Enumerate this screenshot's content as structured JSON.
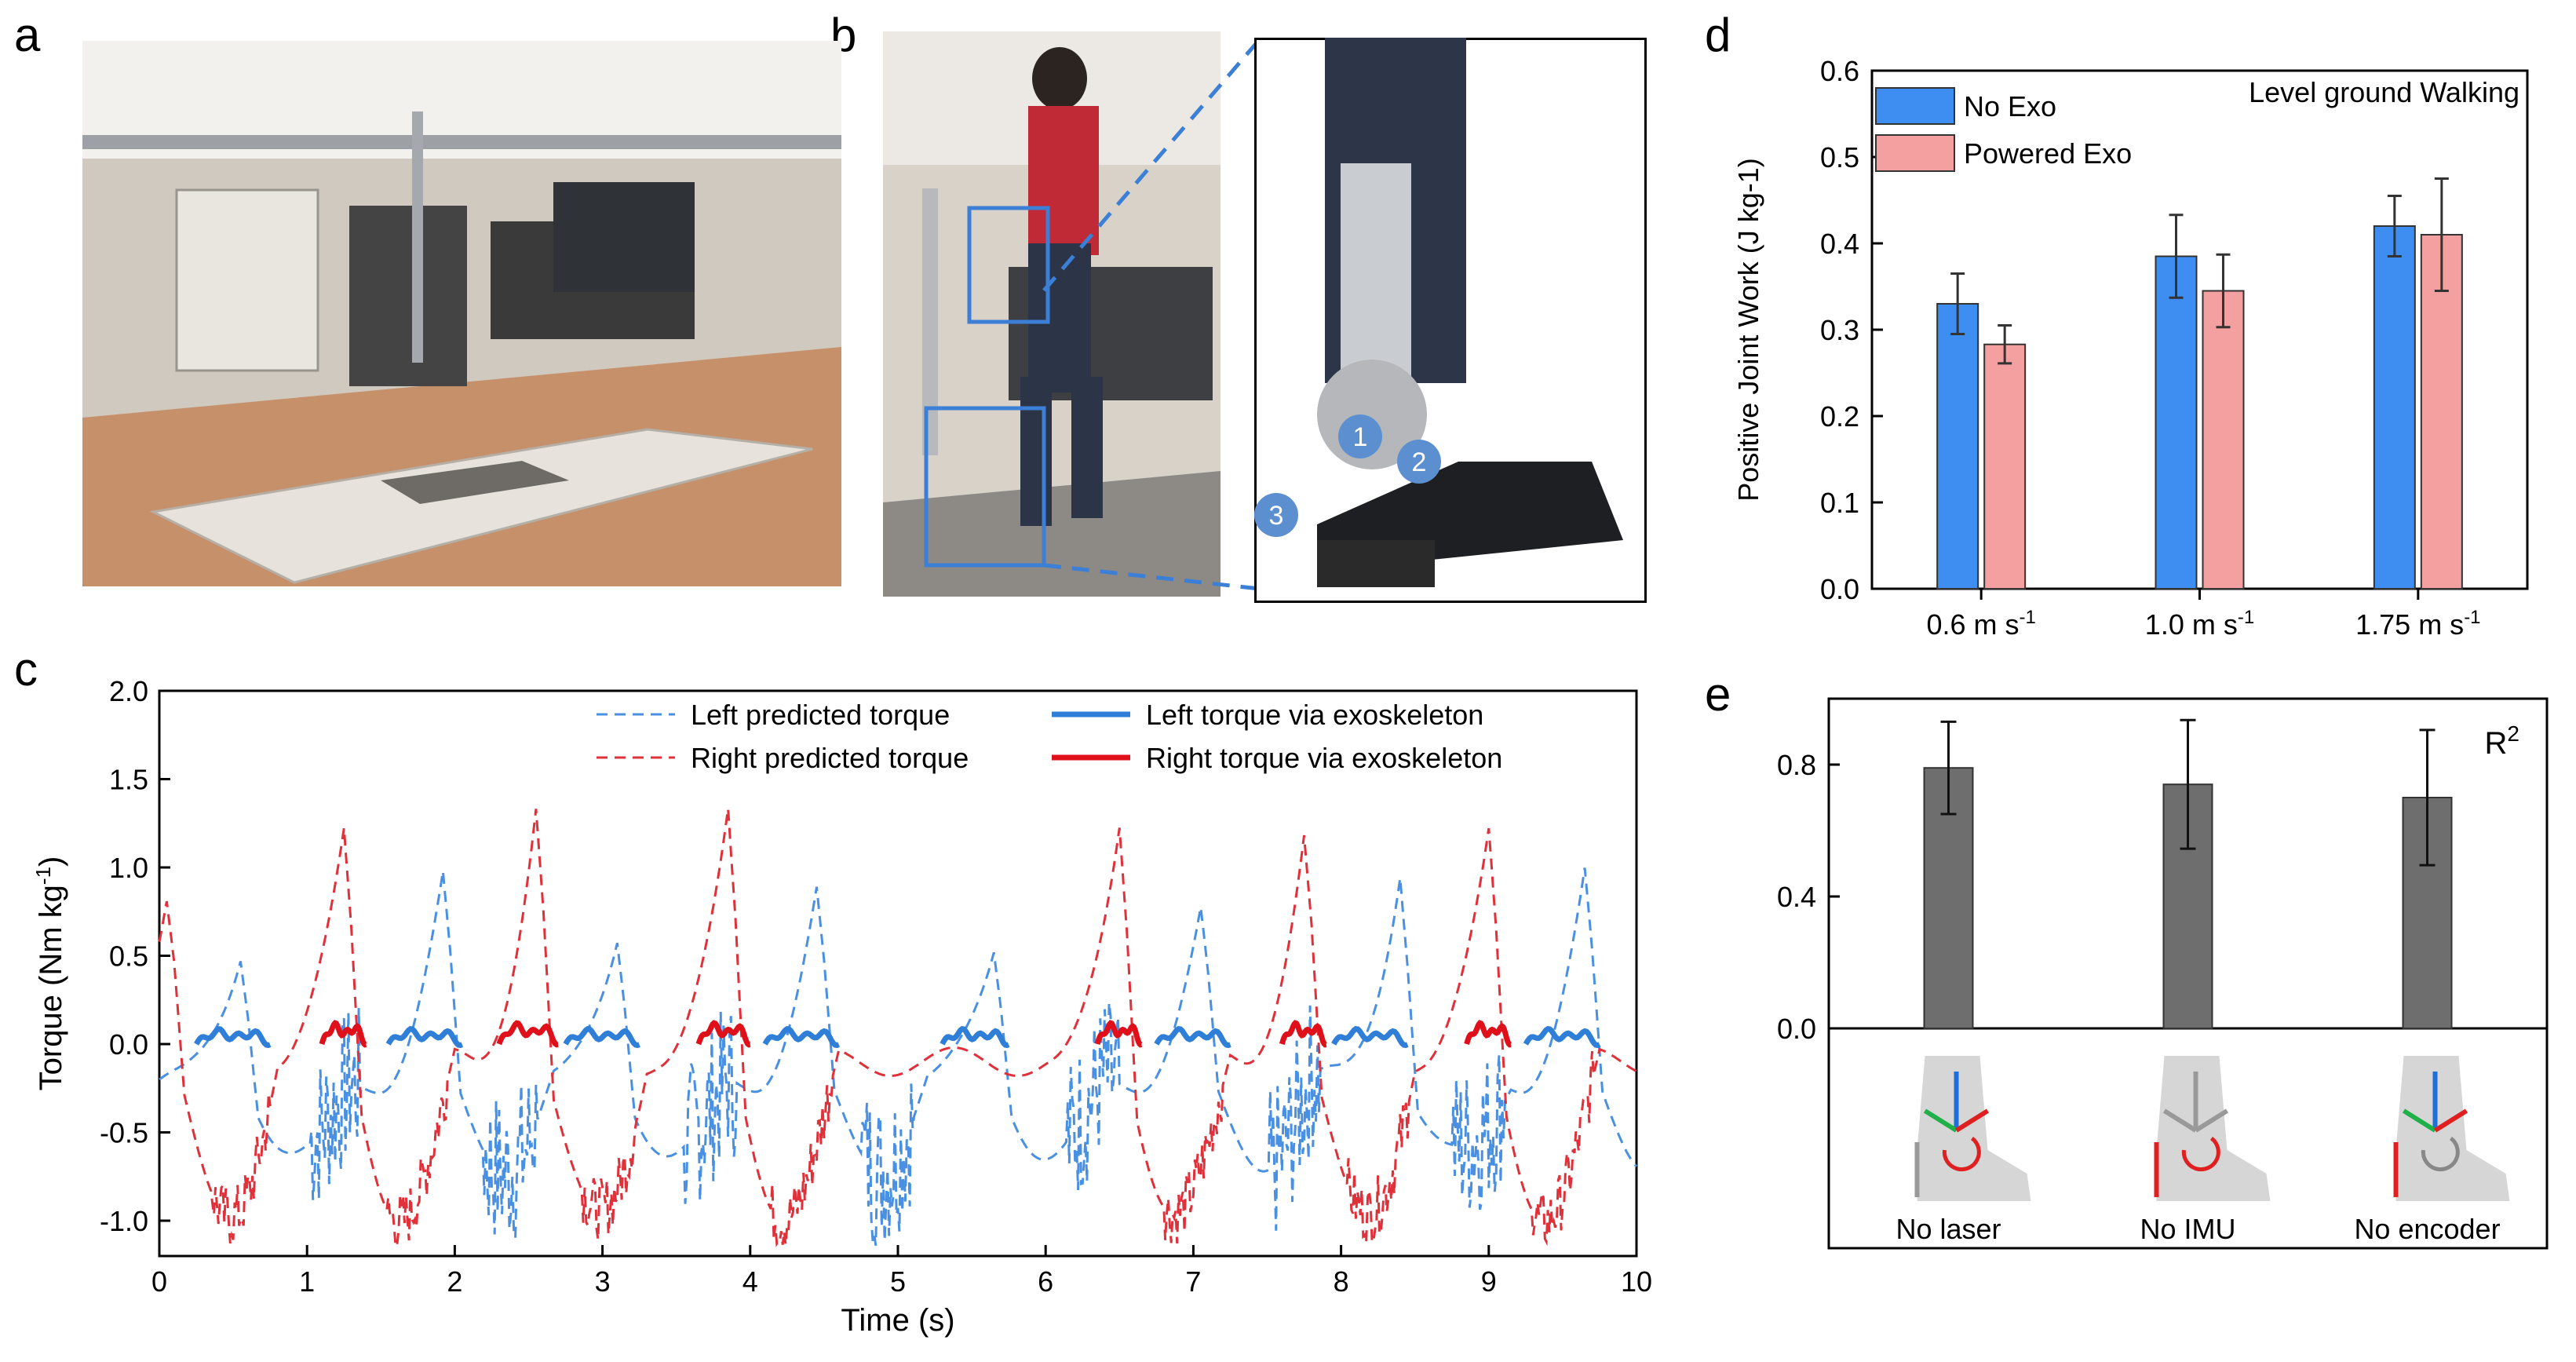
{
  "panels": {
    "a": "a",
    "b": "b",
    "c": "c",
    "d": "d",
    "e": "e"
  },
  "photo_b_markers": [
    "1",
    "2",
    "3"
  ],
  "colors": {
    "blue": "#4a90e2",
    "red": "#e0303a",
    "exo_blue": "#3d8ef0",
    "exo_pink": "#f4a0a0",
    "gray": "#6e6e6e"
  },
  "chart_c": {
    "type": "line",
    "xlabel": "Time (s)",
    "ylabel": "Torque (Nm kg",
    "ylabel_sup": "-1",
    "ylabel_close": ")",
    "xlim": [
      0,
      10
    ],
    "ylim": [
      -1.2,
      2.0
    ],
    "xticks": [
      "0",
      "1",
      "2",
      "3",
      "4",
      "5",
      "6",
      "7",
      "8",
      "9",
      "10"
    ],
    "yticks": [
      "-1.0",
      "-0.5",
      "0.0",
      "0.5",
      "1.0",
      "1.5",
      "2.0"
    ],
    "legend": [
      {
        "label": "Left predicted torque",
        "style": "dashed",
        "color": "#4a90e2"
      },
      {
        "label": "Left torque  via exoskeleton",
        "style": "solid",
        "color": "#2f7fd8"
      },
      {
        "label": "Right predicted torque",
        "style": "dashed",
        "color": "#e0303a"
      },
      {
        "label": "Right torque  via exoskeleton",
        "style": "solid",
        "color": "#e0101a"
      }
    ],
    "left_peaks": [
      {
        "t": 0.55,
        "v": 0.73
      },
      {
        "t": 1.92,
        "v": 1.1
      },
      {
        "t": 3.1,
        "v": 0.82
      },
      {
        "t": 4.45,
        "v": 1.02
      },
      {
        "t": 5.65,
        "v": 0.75
      },
      {
        "t": 7.05,
        "v": 0.9
      },
      {
        "t": 8.4,
        "v": 1.22
      },
      {
        "t": 9.65,
        "v": 1.12
      }
    ],
    "right_peaks": [
      {
        "t": 0.05,
        "v": 0.88
      },
      {
        "t": 1.25,
        "v": 1.3
      },
      {
        "t": 2.55,
        "v": 1.45
      },
      {
        "t": 3.85,
        "v": 1.42
      },
      {
        "t": 6.5,
        "v": 1.35
      },
      {
        "t": 7.75,
        "v": 1.28
      },
      {
        "t": 9.0,
        "v": 1.3
      }
    ],
    "left_exo_segments": [
      [
        0.25,
        0.75
      ],
      [
        1.55,
        2.05
      ],
      [
        2.75,
        3.25
      ],
      [
        4.1,
        4.6
      ],
      [
        5.3,
        5.75
      ],
      [
        6.75,
        7.25
      ],
      [
        7.95,
        8.45
      ],
      [
        9.25,
        9.75
      ]
    ],
    "right_exo_segments": [
      [
        1.1,
        1.4
      ],
      [
        2.3,
        2.7
      ],
      [
        3.65,
        4.0
      ],
      [
        6.35,
        6.65
      ],
      [
        7.6,
        7.9
      ],
      [
        8.85,
        9.15
      ]
    ]
  },
  "chart_d": {
    "type": "bar",
    "title": "Level ground Walking",
    "ylabel": "Positive Joint Work (J kg-1)",
    "ylim": [
      0,
      0.6
    ],
    "yticks": [
      "0.0",
      "0.1",
      "0.2",
      "0.3",
      "0.4",
      "0.5",
      "0.6"
    ],
    "categories": [
      "0.6 m s",
      "1.0 m s",
      "1.75 m s"
    ],
    "category_sup": "-1",
    "series": [
      {
        "name": "No Exo",
        "color": "#3d8ef0",
        "values": [
          0.33,
          0.385,
          0.42
        ],
        "errors": [
          0.035,
          0.048,
          0.035
        ]
      },
      {
        "name": "Powered Exo",
        "color": "#f4a0a0",
        "values": [
          0.283,
          0.345,
          0.41
        ],
        "errors": [
          0.022,
          0.042,
          0.065
        ]
      }
    ]
  },
  "chart_e": {
    "type": "bar",
    "annotation": "R",
    "annotation_sup": "2",
    "ylim": [
      0,
      1.0
    ],
    "yticks": [
      "0.0",
      "0.4",
      "0.8"
    ],
    "categories": [
      "No laser",
      "No IMU",
      "No encoder"
    ],
    "values": [
      0.79,
      0.74,
      0.7
    ],
    "errors": [
      0.14,
      0.195,
      0.205
    ],
    "color": "#6e6e6e"
  }
}
